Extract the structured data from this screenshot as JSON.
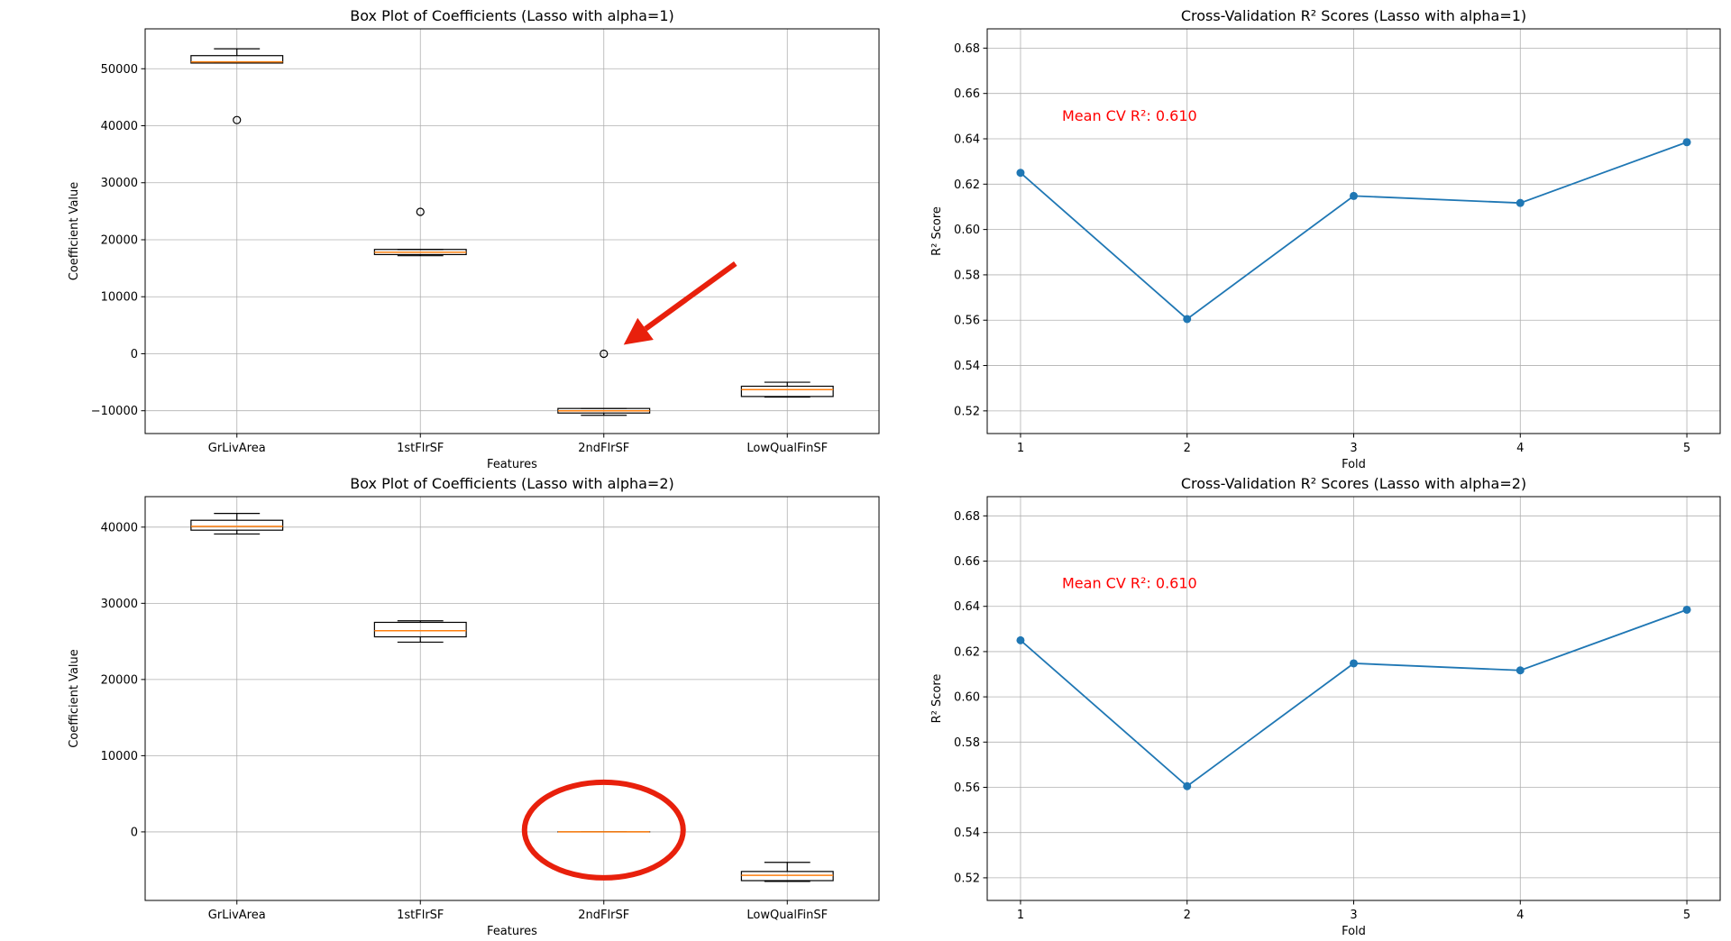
{
  "chart_data": [
    {
      "type": "box",
      "title": "Box Plot of Coefficients (Lasso with alpha=1)",
      "xlabel": "Features",
      "ylabel": "Coefficient Value",
      "ylim": [
        -14000,
        57000
      ],
      "yticks": [
        -10000,
        0,
        10000,
        20000,
        30000,
        40000,
        50000
      ],
      "grid": true,
      "categories": [
        "GrLivArea",
        "1stFlrSF",
        "2ndFlrSF",
        "LowQualFinSF"
      ],
      "boxes": [
        {
          "whislo": 51000,
          "q1": 51000,
          "med": 51200,
          "q3": 52300,
          "whishi": 53500,
          "fliers": [
            41000
          ]
        },
        {
          "whislo": 17200,
          "q1": 17400,
          "med": 17800,
          "q3": 18300,
          "whishi": 18300,
          "fliers": [
            24900
          ]
        },
        {
          "whislo": -10800,
          "q1": -10400,
          "med": -10000,
          "q3": -9600,
          "whishi": -9600,
          "fliers": [
            0
          ]
        },
        {
          "whislo": -7600,
          "q1": -7500,
          "med": -6300,
          "q3": -5700,
          "whishi": -5000,
          "fliers": []
        }
      ],
      "annotation": {
        "type": "arrow",
        "color": "#e8200c",
        "points_to_value": 0,
        "category": "2ndFlrSF"
      }
    },
    {
      "type": "line",
      "title": "Cross-Validation R² Scores (Lasso with alpha=1)",
      "xlabel": "Fold",
      "ylabel": "R² Score",
      "x": [
        1,
        2,
        3,
        4,
        5
      ],
      "values": [
        0.625,
        0.5605,
        0.6148,
        0.6117,
        0.6385
      ],
      "ylim": [
        0.51,
        0.6885
      ],
      "yticks": [
        0.52,
        0.54,
        0.56,
        0.58,
        0.6,
        0.62,
        0.64,
        0.66,
        0.68
      ],
      "xticks": [
        1,
        2,
        3,
        4,
        5
      ],
      "grid": true,
      "color": "#1f77b4",
      "annotation": {
        "text": "Mean CV R²: 0.610",
        "color": "#ff0000"
      }
    },
    {
      "type": "box",
      "title": "Box Plot of Coefficients (Lasso with alpha=2)",
      "xlabel": "Features",
      "ylabel": "Coefficient Value",
      "ylim": [
        -9000,
        44000
      ],
      "yticks": [
        0,
        10000,
        20000,
        30000,
        40000
      ],
      "grid": true,
      "categories": [
        "GrLivArea",
        "1stFlrSF",
        "2ndFlrSF",
        "LowQualFinSF"
      ],
      "boxes": [
        {
          "whislo": 39100,
          "q1": 39600,
          "med": 40100,
          "q3": 40900,
          "whishi": 41800,
          "fliers": []
        },
        {
          "whislo": 24900,
          "q1": 25600,
          "med": 26400,
          "q3": 27500,
          "whishi": 27700,
          "fliers": []
        },
        {
          "whislo": 0,
          "q1": 0,
          "med": 0,
          "q3": 0,
          "whishi": 0,
          "fliers": []
        },
        {
          "whislo": -6500,
          "q1": -6400,
          "med": -5700,
          "q3": -5200,
          "whishi": -4000,
          "fliers": []
        }
      ],
      "annotation": {
        "type": "ellipse",
        "color": "#e8200c",
        "category": "2ndFlrSF",
        "around_value": 0
      }
    },
    {
      "type": "line",
      "title": "Cross-Validation R² Scores (Lasso with alpha=2)",
      "xlabel": "Fold",
      "ylabel": "R² Score",
      "x": [
        1,
        2,
        3,
        4,
        5
      ],
      "values": [
        0.625,
        0.5605,
        0.6148,
        0.6117,
        0.6385
      ],
      "ylim": [
        0.51,
        0.6885
      ],
      "yticks": [
        0.52,
        0.54,
        0.56,
        0.58,
        0.6,
        0.62,
        0.64,
        0.66,
        0.68
      ],
      "xticks": [
        1,
        2,
        3,
        4,
        5
      ],
      "grid": true,
      "color": "#1f77b4",
      "annotation": {
        "text": "Mean CV R²: 0.610",
        "color": "#ff0000"
      }
    }
  ]
}
